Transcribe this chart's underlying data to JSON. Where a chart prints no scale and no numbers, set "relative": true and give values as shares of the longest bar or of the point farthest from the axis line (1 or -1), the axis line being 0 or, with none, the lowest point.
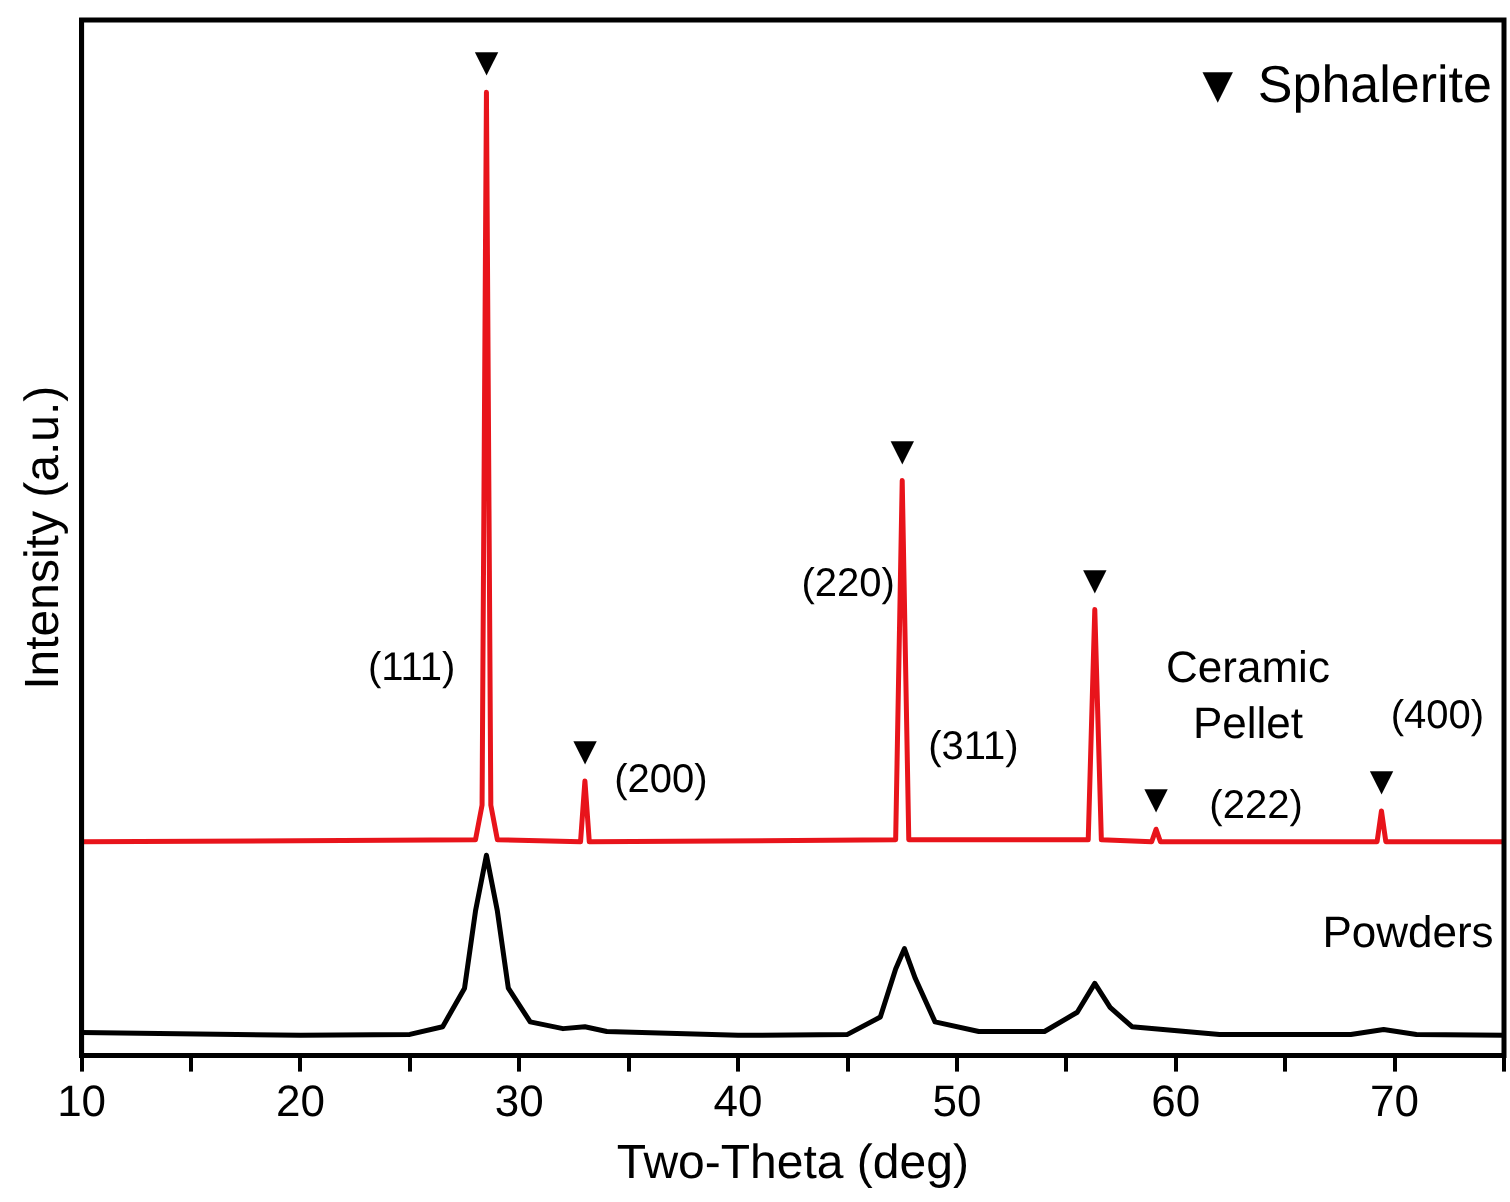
{
  "chart_data": {
    "type": "line",
    "relative": true,
    "xlabel": "Two-Theta (deg)",
    "ylabel": "Intensity (a.u.)",
    "xlim": [
      10,
      75
    ],
    "xticks": [
      10,
      {
        "value": 15,
        "label": null
      },
      20,
      {
        "value": 25,
        "label": null
      },
      30,
      {
        "value": 35,
        "label": null
      },
      40,
      {
        "value": 45,
        "label": null
      },
      50,
      {
        "value": 55,
        "label": null
      },
      60,
      {
        "value": 65,
        "label": null
      },
      70,
      {
        "value": 75,
        "label": null
      }
    ],
    "grid": false,
    "legend": false,
    "marker": "none",
    "line_style": "solid",
    "series": [
      {
        "name": "Ceramic Pellet",
        "color": "#e8141b",
        "x": [
          10,
          28.0,
          28.3,
          28.5,
          28.7,
          29.0,
          32.8,
          33.0,
          33.2,
          47.2,
          47.5,
          47.8,
          56.0,
          56.3,
          56.6,
          58.9,
          59.1,
          59.3,
          69.2,
          69.4,
          69.6,
          75
        ],
        "values": [
          0.222,
          0.224,
          0.26,
          1.0,
          0.26,
          0.224,
          0.222,
          0.285,
          0.222,
          0.224,
          0.597,
          0.224,
          0.224,
          0.463,
          0.224,
          0.222,
          0.235,
          0.222,
          0.222,
          0.254,
          0.222,
          0.222
        ]
      },
      {
        "name": "Powders",
        "color": "#000000",
        "x": [
          10,
          20,
          25,
          26.5,
          27.5,
          28.0,
          28.5,
          29.0,
          29.5,
          30.5,
          32,
          33,
          34,
          40,
          45,
          46.5,
          47.2,
          47.6,
          48.1,
          49,
          51,
          54,
          55.5,
          56.3,
          57,
          58,
          62,
          68,
          69.5,
          71,
          75
        ],
        "values": [
          0.024,
          0.021,
          0.022,
          0.03,
          0.07,
          0.15,
          0.208,
          0.15,
          0.07,
          0.035,
          0.028,
          0.03,
          0.025,
          0.021,
          0.022,
          0.04,
          0.09,
          0.111,
          0.08,
          0.035,
          0.025,
          0.025,
          0.045,
          0.075,
          0.05,
          0.03,
          0.022,
          0.022,
          0.027,
          0.022,
          0.021
        ]
      }
    ],
    "annotations": [
      "▼ Sphalerite",
      {
        "text": "▼",
        "x": 28.5,
        "y": 1.0
      },
      {
        "text": "▼",
        "x": 33.0,
        "y": 0.285
      },
      {
        "text": "▼",
        "x": 47.5,
        "y": 0.597
      },
      {
        "text": "▼",
        "x": 56.3,
        "y": 0.463
      },
      {
        "text": "▼",
        "x": 59.1,
        "y": 0.235
      },
      {
        "text": "▼",
        "x": 69.4,
        "y": 0.254
      },
      "(111)",
      {
        "text": "(200)",
        "x": 33.0,
        "y": 0.285
      },
      {
        "text": "(220)",
        "x": 47.5,
        "y": 0.597
      },
      "(311)",
      {
        "text": "(222)",
        "x": 59.1,
        "y": 0.235
      },
      {
        "text": "(400)",
        "x": 69.4,
        "y": 0.254
      }
    ]
  }
}
